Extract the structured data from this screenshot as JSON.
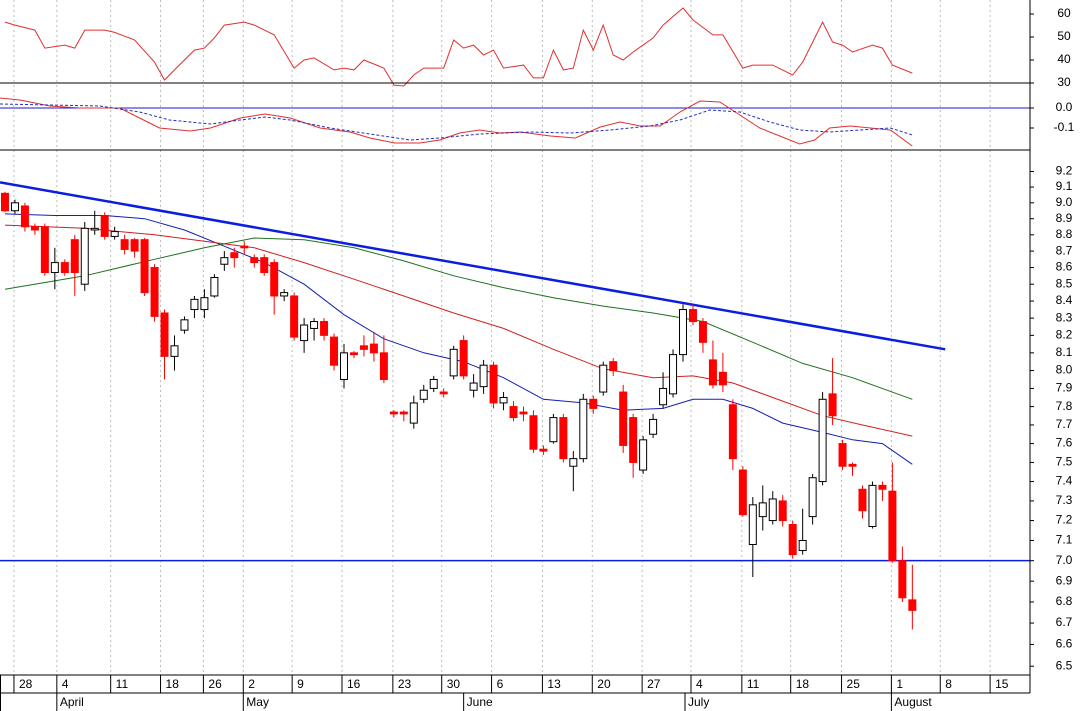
{
  "chart_data": [
    {
      "type": "line",
      "ylim": [
        30,
        66.1
      ],
      "yticks": [
        30,
        40,
        50,
        60
      ],
      "series": [
        {
          "color": "#e03030",
          "x": [
            0,
            1,
            3,
            4,
            6,
            7,
            8,
            10,
            11,
            13,
            15,
            16,
            17,
            19,
            20,
            21,
            22,
            24,
            25,
            27,
            29,
            30,
            31,
            33,
            34,
            35,
            36,
            38,
            39,
            40,
            41,
            42,
            44,
            45,
            46,
            47,
            48,
            49,
            50,
            52,
            53,
            54,
            55,
            56,
            57,
            58,
            59,
            60,
            61,
            62,
            63,
            65,
            66,
            68,
            69,
            71,
            72,
            74,
            75,
            77,
            79,
            80,
            82,
            83,
            84,
            85,
            87,
            88,
            89,
            91
          ],
          "values": [
            56.5,
            55.2,
            53,
            45.2,
            46.5,
            45.2,
            53,
            53,
            52,
            48.7,
            39.1,
            31.3,
            35.7,
            44.3,
            45.2,
            49.6,
            55.2,
            56.5,
            55.2,
            50.9,
            36.5,
            40,
            40.9,
            35.7,
            36.5,
            35.7,
            40,
            36.5,
            29.1,
            28.7,
            33.5,
            36.5,
            36.5,
            48.7,
            45.2,
            46.5,
            42.2,
            44.3,
            36.5,
            37.8,
            32.2,
            32.2,
            44.3,
            35.7,
            36.5,
            53,
            44.3,
            55.2,
            42.2,
            40,
            43.5,
            49.6,
            55.2,
            62.6,
            57.4,
            50.9,
            50.9,
            36.5,
            37.8,
            37.8,
            33.5,
            39.1,
            56.5,
            47.8,
            46.5,
            43.5,
            46.5,
            45.2,
            37.8,
            34.3
          ]
        }
      ]
    },
    {
      "type": "line",
      "ylim": [
        -0.21,
        0.125
      ],
      "yticks": [
        {
          "value": 0,
          "label": "0.0"
        },
        -0.1
      ],
      "hline": 0,
      "series": [
        {
          "color": "#e03030",
          "dash": false,
          "x": [
            -0.5,
            1.5,
            4.5,
            7.5,
            9.5,
            11.5,
            13.5,
            15.5,
            18.6,
            20.6,
            23.6,
            26.1,
            28.6,
            31.6,
            34.6,
            36.6,
            39.1,
            41.6,
            43.6,
            45.6,
            47.6,
            49.6,
            51.7,
            54.7,
            57.2,
            59.7,
            61.7,
            63.7,
            65.7,
            67.7,
            69.7,
            71.7,
            73.7,
            75.7,
            77.7,
            79.7,
            81.2,
            82.7,
            84.8,
            86.8,
            88.8,
            91
          ],
          "values": [
            0.05,
            0.04,
            0.01,
            0,
            0,
            0,
            -0.05,
            -0.1,
            -0.115,
            -0.1,
            -0.05,
            -0.03,
            -0.05,
            -0.1,
            -0.12,
            -0.15,
            -0.175,
            -0.175,
            -0.16,
            -0.125,
            -0.11,
            -0.125,
            -0.12,
            -0.14,
            -0.15,
            -0.095,
            -0.07,
            -0.09,
            -0.09,
            -0.02,
            0.035,
            0.03,
            -0.035,
            -0.1,
            -0.14,
            -0.18,
            -0.16,
            -0.1,
            -0.09,
            -0.1,
            -0.11,
            -0.19
          ]
        },
        {
          "color": "#2030c0",
          "dash": true,
          "x": [
            -0.5,
            4.5,
            9.5,
            13.5,
            16.5,
            20.6,
            23.6,
            26.1,
            28.6,
            32.6,
            36.6,
            40.6,
            43.6,
            47.6,
            52.7,
            56.7,
            60.7,
            64.7,
            67.7,
            70.7,
            73.7,
            76.7,
            79.7,
            82.7,
            85.8,
            88.8,
            91
          ],
          "values": [
            0.02,
            0.015,
            0.01,
            -0.02,
            -0.06,
            -0.08,
            -0.06,
            -0.045,
            -0.06,
            -0.1,
            -0.13,
            -0.16,
            -0.15,
            -0.13,
            -0.12,
            -0.125,
            -0.11,
            -0.09,
            -0.06,
            -0.01,
            -0.02,
            -0.07,
            -0.11,
            -0.12,
            -0.11,
            -0.1,
            -0.135
          ]
        }
      ]
    },
    {
      "type": "candlestick",
      "log_scale": true,
      "ylim": [
        6.46,
        9.34
      ],
      "yticks": [
        9.2,
        9.1,
        {
          "value": 9,
          "label": "9.0"
        },
        8.9,
        8.8,
        8.7,
        8.6,
        8.5,
        8.4,
        8.3,
        8.2,
        8.1,
        {
          "value": 8,
          "label": "8.0"
        },
        7.9,
        7.8,
        7.7,
        7.6,
        7.5,
        7.4,
        7.3,
        7.2,
        7.1,
        {
          "value": 7,
          "label": "7.0"
        },
        6.9,
        6.8,
        6.7,
        6.6,
        6.5
      ],
      "xlim": [
        -0.5,
        102.8
      ],
      "xticks": [
        {
          "value": 0.9,
          "label": "28"
        },
        {
          "value": 5.2,
          "label": "4"
        },
        {
          "value": 10.6,
          "label": "11"
        },
        {
          "value": 15.6,
          "label": "18"
        },
        {
          "value": 19.9,
          "label": "26"
        },
        {
          "value": 23.9,
          "label": "2"
        },
        {
          "value": 28.8,
          "label": "9"
        },
        {
          "value": 33.8,
          "label": "16"
        },
        {
          "value": 38.9,
          "label": "23"
        },
        {
          "value": 43.8,
          "label": "30"
        },
        {
          "value": 48.8,
          "label": "6"
        },
        {
          "value": 53.9,
          "label": "13"
        },
        {
          "value": 58.9,
          "label": "20"
        },
        {
          "value": 63.9,
          "label": "27"
        },
        {
          "value": 68.8,
          "label": "4"
        },
        {
          "value": 73.9,
          "label": "11"
        },
        {
          "value": 78.8,
          "label": "18"
        },
        {
          "value": 83.9,
          "label": "25"
        },
        {
          "value": 88.9,
          "label": "1"
        },
        {
          "value": 93.8,
          "label": "8"
        },
        {
          "value": 98.8,
          "label": "15"
        }
      ],
      "month_ticks": [
        {
          "value": 5.2,
          "label": "April"
        },
        {
          "value": 23.9,
          "label": "May"
        },
        {
          "value": 46.0,
          "label": "June"
        },
        {
          "value": 68.2,
          "label": "July"
        },
        {
          "value": 88.9,
          "label": "August"
        }
      ],
      "grid": true,
      "up_color": "#ffffff",
      "down_color": "#ff0000",
      "x": [
        0,
        1,
        2,
        3,
        4,
        5,
        6,
        7,
        8,
        9,
        10,
        11,
        12,
        13,
        14,
        15,
        16,
        17,
        18,
        19,
        20,
        21,
        22,
        23,
        24,
        25,
        26,
        27,
        28,
        29,
        30,
        31,
        32,
        33,
        34,
        35,
        36,
        37,
        38,
        39,
        40,
        41,
        42,
        43,
        44,
        45,
        46,
        47,
        48,
        49,
        50,
        51,
        52,
        53,
        54,
        55,
        56,
        57,
        58,
        59,
        60,
        61,
        62,
        63,
        64,
        65,
        66,
        67,
        68,
        69,
        70,
        71,
        72,
        73,
        74,
        75,
        76,
        77,
        78,
        79,
        80,
        81,
        82,
        83,
        84,
        85,
        86,
        87,
        88,
        89,
        90,
        91
      ],
      "open": [
        9.06,
        8.95,
        8.98,
        8.85,
        8.85,
        8.57,
        8.63,
        8.77,
        8.5,
        8.83,
        8.92,
        8.79,
        8.77,
        8.77,
        8.77,
        8.6,
        8.33,
        8.08,
        8.23,
        8.35,
        8.35,
        8.43,
        8.62,
        8.69,
        8.73,
        8.66,
        8.66,
        8.63,
        8.43,
        8.43,
        8.17,
        8.24,
        8.28,
        8.19,
        7.95,
        8.1,
        8.14,
        8.15,
        8.1,
        7.77,
        7.77,
        7.71,
        7.84,
        7.9,
        7.88,
        7.97,
        8.17,
        7.89,
        7.91,
        8.03,
        7.82,
        7.8,
        7.77,
        7.75,
        7.57,
        7.61,
        7.74,
        7.48,
        7.52,
        7.84,
        7.88,
        8.05,
        7.88,
        7.74,
        7.46,
        7.65,
        7.81,
        7.87,
        8.09,
        8.35,
        8.28,
        8.06,
        7.99,
        7.81,
        7.46,
        7.08,
        7.22,
        7.2,
        7.3,
        7.18,
        7.05,
        7.22,
        7.4,
        7.87,
        7.6,
        7.49,
        7.36,
        7.17,
        7.38,
        7.35,
        7.0,
        6.81
      ],
      "high": [
        9.07,
        9.02,
        9.0,
        8.87,
        8.87,
        8.72,
        8.65,
        8.8,
        8.88,
        8.95,
        8.94,
        8.85,
        8.8,
        8.78,
        8.78,
        8.62,
        8.35,
        8.2,
        8.31,
        8.43,
        8.47,
        8.56,
        8.7,
        8.72,
        8.76,
        8.68,
        8.68,
        8.65,
        8.47,
        8.45,
        8.3,
        8.3,
        8.3,
        8.21,
        8.15,
        8.11,
        8.2,
        8.22,
        8.2,
        7.78,
        7.78,
        7.86,
        7.92,
        7.97,
        7.9,
        8.14,
        8.2,
        7.98,
        8.06,
        8.05,
        7.88,
        7.83,
        7.8,
        7.78,
        7.59,
        7.76,
        7.76,
        7.56,
        7.87,
        7.86,
        8.05,
        8.07,
        7.92,
        7.76,
        7.64,
        7.76,
        7.99,
        8.12,
        8.38,
        8.38,
        8.3,
        8.17,
        8.1,
        7.84,
        7.48,
        7.32,
        7.38,
        7.35,
        7.33,
        7.2,
        7.26,
        7.44,
        7.88,
        8.07,
        7.62,
        7.5,
        7.38,
        7.4,
        7.4,
        7.5,
        7.07,
        6.98
      ],
      "low": [
        8.94,
        8.93,
        8.82,
        8.8,
        8.55,
        8.47,
        8.55,
        8.43,
        8.46,
        8.8,
        8.77,
        8.77,
        8.68,
        8.66,
        8.43,
        8.28,
        7.95,
        8.0,
        8.21,
        8.3,
        8.3,
        8.42,
        8.58,
        8.6,
        8.68,
        8.6,
        8.55,
        8.32,
        8.4,
        8.17,
        8.1,
        8.17,
        8.17,
        8.0,
        7.9,
        8.07,
        8.08,
        8.05,
        7.93,
        7.74,
        7.72,
        7.68,
        7.82,
        7.88,
        7.85,
        7.95,
        7.95,
        7.85,
        7.87,
        7.79,
        7.78,
        7.72,
        7.72,
        7.55,
        7.54,
        7.6,
        7.5,
        7.35,
        7.5,
        7.76,
        7.86,
        7.97,
        7.55,
        7.42,
        7.44,
        7.63,
        7.79,
        7.85,
        8.05,
        8.26,
        8.1,
        7.9,
        7.88,
        7.46,
        7.22,
        6.92,
        7.15,
        7.18,
        7.17,
        7.01,
        7.03,
        7.18,
        7.38,
        7.7,
        7.46,
        7.43,
        7.21,
        7.16,
        7.3,
        6.99,
        6.8,
        6.67
      ],
      "close": [
        8.95,
        9.0,
        8.85,
        8.83,
        8.57,
        8.63,
        8.57,
        8.57,
        8.84,
        8.84,
        8.79,
        8.82,
        8.71,
        8.7,
        8.45,
        8.31,
        8.08,
        8.14,
        8.29,
        8.41,
        8.42,
        8.54,
        8.66,
        8.66,
        8.72,
        8.63,
        8.57,
        8.43,
        8.45,
        8.19,
        8.26,
        8.28,
        8.2,
        8.03,
        8.1,
        8.09,
        8.12,
        8.1,
        7.95,
        7.76,
        7.76,
        7.82,
        7.89,
        7.95,
        7.87,
        8.12,
        7.97,
        7.93,
        8.03,
        7.82,
        7.85,
        7.74,
        7.76,
        7.57,
        7.56,
        7.74,
        7.52,
        7.52,
        7.84,
        7.79,
        8.03,
        8.0,
        7.59,
        7.5,
        7.62,
        7.73,
        7.9,
        8.09,
        8.35,
        8.28,
        8.16,
        7.92,
        7.92,
        7.52,
        7.23,
        7.28,
        7.29,
        7.31,
        7.2,
        7.03,
        7.1,
        7.42,
        7.84,
        7.75,
        7.48,
        7.48,
        7.25,
        7.38,
        7.36,
        7.0,
        6.82,
        6.76
      ],
      "overlays": [
        {
          "color": "#1020b0",
          "x": [
            0,
            5,
            10,
            14,
            18,
            22,
            26,
            30,
            34,
            38,
            42,
            46,
            50,
            54,
            58,
            62,
            66,
            69,
            72,
            75,
            78,
            82,
            85,
            88,
            91
          ],
          "values": [
            8.93,
            8.92,
            8.92,
            8.9,
            8.83,
            8.73,
            8.63,
            8.5,
            8.32,
            8.18,
            8.1,
            8.05,
            7.96,
            7.84,
            7.82,
            7.78,
            7.79,
            7.84,
            7.84,
            7.79,
            7.71,
            7.66,
            7.62,
            7.6,
            7.49
          ]
        },
        {
          "color": "#d02020",
          "x": [
            0,
            8,
            15,
            20,
            25,
            30,
            35,
            40,
            45,
            50,
            55,
            60,
            65,
            69,
            73,
            78,
            82,
            86,
            91
          ],
          "values": [
            8.86,
            8.84,
            8.8,
            8.76,
            8.72,
            8.63,
            8.53,
            8.43,
            8.33,
            8.24,
            8.12,
            8.01,
            7.96,
            7.97,
            7.93,
            7.83,
            7.75,
            7.7,
            7.64
          ]
        },
        {
          "color": "#207020",
          "x": [
            0,
            8,
            15,
            20,
            25,
            30,
            35,
            40,
            45,
            50,
            55,
            60,
            65,
            70,
            75,
            80,
            85,
            91
          ],
          "values": [
            8.47,
            8.55,
            8.65,
            8.72,
            8.78,
            8.77,
            8.72,
            8.64,
            8.55,
            8.48,
            8.42,
            8.37,
            8.33,
            8.28,
            8.16,
            8.04,
            7.96,
            7.84
          ]
        }
      ],
      "trendline": {
        "color": "#0a1ee0",
        "x": [
          -0.5,
          94.3
        ],
        "values": [
          9.13,
          8.12
        ]
      },
      "hline": {
        "color": "#0a1ee0",
        "value": 7
      }
    }
  ]
}
